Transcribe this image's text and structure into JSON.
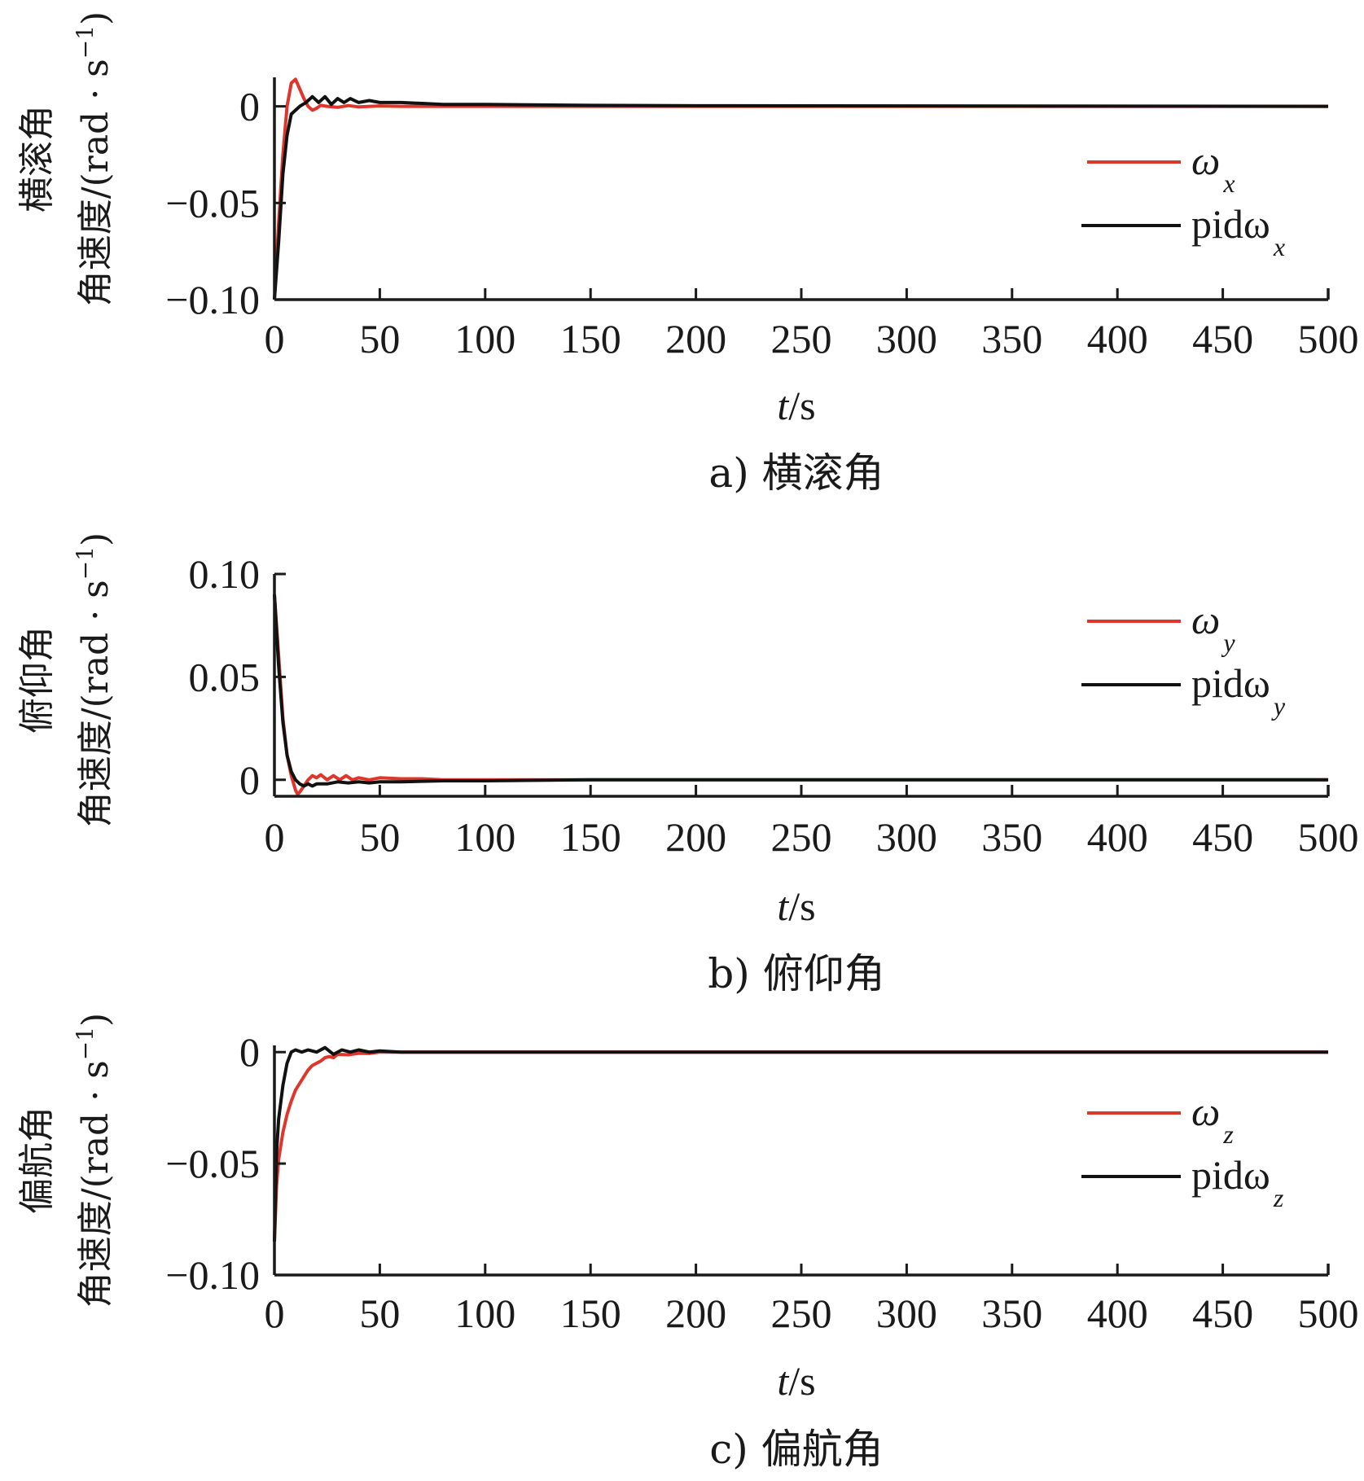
{
  "colors": {
    "omega": "#e0352b",
    "pid": "#111111",
    "axis": "#1a1a1a"
  },
  "chart_data": [
    {
      "type": "line",
      "caption": "a) 横滚角",
      "ylabel_line1": "横滚角",
      "ylabel_line2": "角速度/(rad · s",
      "ylabel_sup": "−1",
      "ylabel_close": ")",
      "xlabel_italic": "t",
      "xlabel_rest": "/s",
      "xlim": [
        0,
        500
      ],
      "ylim": [
        -0.1,
        0.015
      ],
      "xticks": [
        0,
        50,
        100,
        150,
        200,
        250,
        300,
        350,
        400,
        450,
        500
      ],
      "xtick_labels": [
        "0",
        "50",
        "100",
        "150",
        "200",
        "250",
        "300",
        "350",
        "400",
        "450",
        "500"
      ],
      "yticks": [
        0,
        -0.05,
        -0.1
      ],
      "ytick_labels": [
        "0",
        "−0.05",
        "−0.10"
      ],
      "legend_position": "right",
      "series": [
        {
          "name": "ω",
          "sub": "x",
          "color": "#e0352b",
          "x": [
            0,
            2,
            4,
            6,
            8,
            10,
            12,
            14,
            16,
            18,
            20,
            22,
            25,
            30,
            35,
            40,
            50,
            60,
            80,
            100,
            200,
            500
          ],
          "y": [
            -0.1,
            -0.06,
            -0.025,
            0.0,
            0.012,
            0.014,
            0.009,
            0.004,
            0.0,
            -0.002,
            -0.001,
            0.0005,
            0.0,
            -0.0005,
            0.0004,
            -0.0003,
            0.0002,
            0.0,
            0.0,
            0.0,
            0.0,
            0.0
          ]
        },
        {
          "name": "pidω",
          "sub": "x",
          "color": "#111111",
          "x": [
            0,
            2,
            4,
            6,
            8,
            10,
            12,
            15,
            18,
            21,
            24,
            27,
            30,
            33,
            36,
            40,
            45,
            50,
            60,
            70,
            80,
            100,
            150,
            200,
            500
          ],
          "y": [
            -0.1,
            -0.07,
            -0.035,
            -0.015,
            -0.004,
            -0.002,
            0.0,
            0.002,
            0.005,
            0.002,
            0.005,
            0.001,
            0.004,
            0.002,
            0.004,
            0.002,
            0.003,
            0.002,
            0.002,
            0.0015,
            0.001,
            0.001,
            0.0005,
            0.0003,
            0.0
          ]
        }
      ]
    },
    {
      "type": "line",
      "caption": "b) 俯仰角",
      "ylabel_line1": "俯仰角",
      "ylabel_line2": "角速度/(rad · s",
      "ylabel_sup": "−1",
      "ylabel_close": ")",
      "xlabel_italic": "t",
      "xlabel_rest": "/s",
      "xlim": [
        0,
        500
      ],
      "ylim": [
        -0.008,
        0.1
      ],
      "xticks": [
        0,
        50,
        100,
        150,
        200,
        250,
        300,
        350,
        400,
        450,
        500
      ],
      "xtick_labels": [
        "0",
        "50",
        "100",
        "150",
        "200",
        "250",
        "300",
        "350",
        "400",
        "450",
        "500"
      ],
      "yticks": [
        0.1,
        0.05,
        0
      ],
      "ytick_labels": [
        "0.10",
        "0.05",
        "0"
      ],
      "legend_position": "right",
      "series": [
        {
          "name": "ω",
          "sub": "y",
          "color": "#e0352b",
          "x": [
            0,
            2,
            4,
            6,
            8,
            10,
            11,
            12,
            14,
            16,
            18,
            20,
            22,
            25,
            28,
            31,
            34,
            37,
            40,
            45,
            50,
            60,
            70,
            80,
            100,
            150,
            200,
            500
          ],
          "y": [
            0.09,
            0.06,
            0.03,
            0.012,
            0.002,
            -0.005,
            -0.007,
            -0.006,
            -0.003,
            0.0,
            0.002,
            0.001,
            0.0025,
            0.0,
            0.002,
            0.0,
            0.002,
            0.0,
            0.001,
            0.0,
            0.001,
            0.0005,
            0.0005,
            0.0,
            0.0,
            0.0,
            0.0,
            0.0
          ]
        },
        {
          "name": "pidω",
          "sub": "y",
          "color": "#111111",
          "x": [
            0,
            2,
            4,
            6,
            8,
            10,
            12,
            14,
            16,
            18,
            20,
            25,
            30,
            35,
            40,
            45,
            50,
            60,
            80,
            100,
            150,
            200,
            500
          ],
          "y": [
            0.09,
            0.055,
            0.028,
            0.012,
            0.004,
            0.0,
            -0.002,
            -0.003,
            -0.002,
            -0.003,
            -0.002,
            -0.002,
            -0.001,
            -0.0015,
            -0.001,
            -0.0015,
            -0.001,
            -0.001,
            -0.0005,
            -0.0005,
            0.0,
            0.0,
            0.0
          ]
        }
      ]
    },
    {
      "type": "line",
      "caption": "c) 偏航角",
      "ylabel_line1": "偏航角",
      "ylabel_line2": "角速度/(rad · s",
      "ylabel_sup": "−1",
      "ylabel_close": ")",
      "xlabel_italic": "t",
      "xlabel_rest": "/s",
      "xlim": [
        0,
        500
      ],
      "ylim": [
        -0.1,
        0.003
      ],
      "xticks": [
        0,
        50,
        100,
        150,
        200,
        250,
        300,
        350,
        400,
        450,
        500
      ],
      "xtick_labels": [
        "0",
        "50",
        "100",
        "150",
        "200",
        "250",
        "300",
        "350",
        "400",
        "450",
        "500"
      ],
      "yticks": [
        0,
        -0.05,
        -0.1
      ],
      "ytick_labels": [
        "0",
        "−0.05",
        "−0.10"
      ],
      "legend_position": "right",
      "series": [
        {
          "name": "ω",
          "sub": "z",
          "color": "#e0352b",
          "x": [
            0,
            1,
            2,
            4,
            6,
            8,
            10,
            12,
            14,
            16,
            18,
            20,
            22,
            24,
            26,
            28,
            30,
            35,
            40,
            45,
            50,
            60,
            80,
            100,
            200,
            500
          ],
          "y": [
            -0.085,
            -0.06,
            -0.048,
            -0.036,
            -0.028,
            -0.022,
            -0.017,
            -0.014,
            -0.011,
            -0.008,
            -0.006,
            -0.005,
            -0.004,
            -0.0025,
            -0.002,
            -0.0025,
            -0.001,
            -0.0012,
            -0.0005,
            -0.0006,
            0.0,
            0.0,
            0.0,
            0.0,
            0.0,
            0.0
          ]
        },
        {
          "name": "pidω",
          "sub": "z",
          "color": "#111111",
          "x": [
            0,
            1,
            2,
            4,
            6,
            8,
            10,
            13,
            16,
            20,
            24,
            28,
            32,
            36,
            40,
            45,
            50,
            60,
            80,
            100,
            200,
            500
          ],
          "y": [
            -0.085,
            -0.045,
            -0.03,
            -0.015,
            -0.005,
            0.0,
            0.001,
            0.0,
            0.001,
            0.0,
            0.002,
            -0.001,
            0.001,
            0.0,
            0.001,
            0.0,
            0.0005,
            0.0,
            0.0,
            0.0,
            0.0,
            0.0
          ]
        }
      ]
    }
  ]
}
